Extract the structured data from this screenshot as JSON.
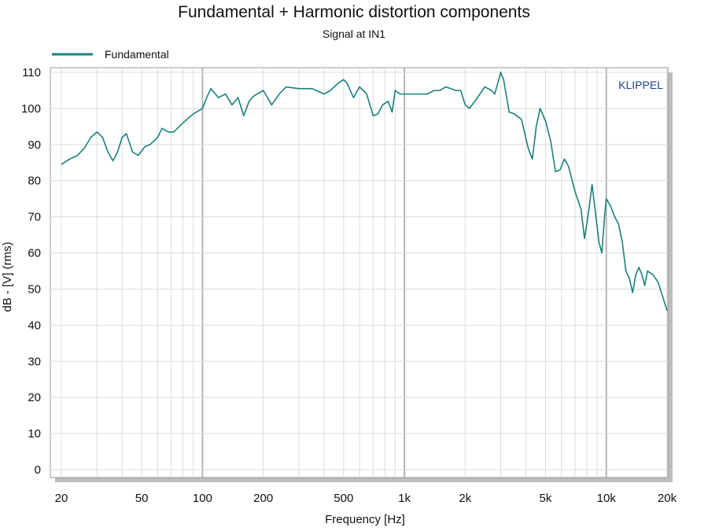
{
  "chart_data": {
    "type": "line",
    "title": "Fundamental + Harmonic distortion components",
    "subtitle": "Signal at IN1",
    "xlabel": "Frequency [Hz]",
    "ylabel": "dB - [V] (rms)",
    "x_scale": "log",
    "xlim": [
      20,
      20000
    ],
    "ylim": [
      0,
      110
    ],
    "x_ticks": [
      20,
      50,
      100,
      200,
      500,
      1000,
      2000,
      5000,
      10000,
      20000
    ],
    "x_tick_labels": [
      "20",
      "50",
      "100",
      "200",
      "500",
      "1k",
      "2k",
      "5k",
      "10k",
      "20k"
    ],
    "y_ticks": [
      0,
      10,
      20,
      30,
      40,
      50,
      60,
      70,
      80,
      90,
      100,
      110
    ],
    "y_tick_labels": [
      "0",
      "10",
      "20",
      "30",
      "40",
      "50",
      "60",
      "70",
      "80",
      "90",
      "100",
      "110"
    ],
    "grid": true,
    "legend_position": "top-left",
    "brand": "KLIPPEL",
    "brand_color": "#1f3f8f",
    "series": [
      {
        "name": "Fundamental",
        "color": "#1a7f7f",
        "x": [
          20,
          22,
          24,
          26,
          28,
          30,
          32,
          34,
          36,
          38,
          40,
          42,
          45,
          48,
          52,
          55,
          60,
          63,
          68,
          72,
          80,
          90,
          100,
          105,
          110,
          120,
          130,
          140,
          150,
          160,
          170,
          180,
          200,
          210,
          220,
          240,
          260,
          300,
          350,
          400,
          430,
          470,
          500,
          520,
          560,
          600,
          650,
          700,
          740,
          780,
          830,
          870,
          900,
          950,
          1000,
          1100,
          1200,
          1300,
          1400,
          1500,
          1600,
          1700,
          1800,
          1900,
          2000,
          2100,
          2300,
          2500,
          2700,
          2800,
          2900,
          3000,
          3100,
          3300,
          3500,
          3800,
          4100,
          4300,
          4500,
          4700,
          5000,
          5300,
          5600,
          5900,
          6200,
          6500,
          7000,
          7500,
          7800,
          8000,
          8200,
          8500,
          8800,
          9200,
          9500,
          9800,
          10000,
          10500,
          11000,
          11500,
          12000,
          12500,
          13000,
          13500,
          14000,
          14500,
          15000,
          15500,
          16000,
          17000,
          18000,
          19000,
          20000
        ],
        "values": [
          84.5,
          86,
          87,
          89,
          92,
          93.5,
          92,
          88,
          85.5,
          88,
          92,
          93,
          88,
          87,
          89.5,
          90,
          92,
          94.5,
          93.5,
          93.5,
          96,
          98.5,
          100,
          103,
          105.5,
          103,
          104,
          101,
          103,
          98,
          102,
          103.5,
          105,
          103,
          101,
          104,
          106,
          105.5,
          105.5,
          104,
          105,
          107,
          108,
          107,
          103,
          106,
          104,
          98,
          98.5,
          101,
          102,
          99,
          105,
          104,
          104,
          104,
          104,
          104,
          105,
          105,
          106,
          105.5,
          105,
          105,
          101,
          100,
          103,
          106,
          105,
          104,
          107,
          110,
          108,
          99,
          98.5,
          97,
          89,
          86,
          95,
          100,
          96.5,
          91,
          82.5,
          83,
          86,
          84,
          77,
          72,
          64,
          68,
          72,
          79,
          72,
          63,
          60,
          70,
          75,
          73,
          70,
          68,
          63,
          55,
          53,
          49,
          54,
          56,
          54,
          51,
          55,
          54,
          52,
          48,
          44
        ]
      }
    ]
  }
}
